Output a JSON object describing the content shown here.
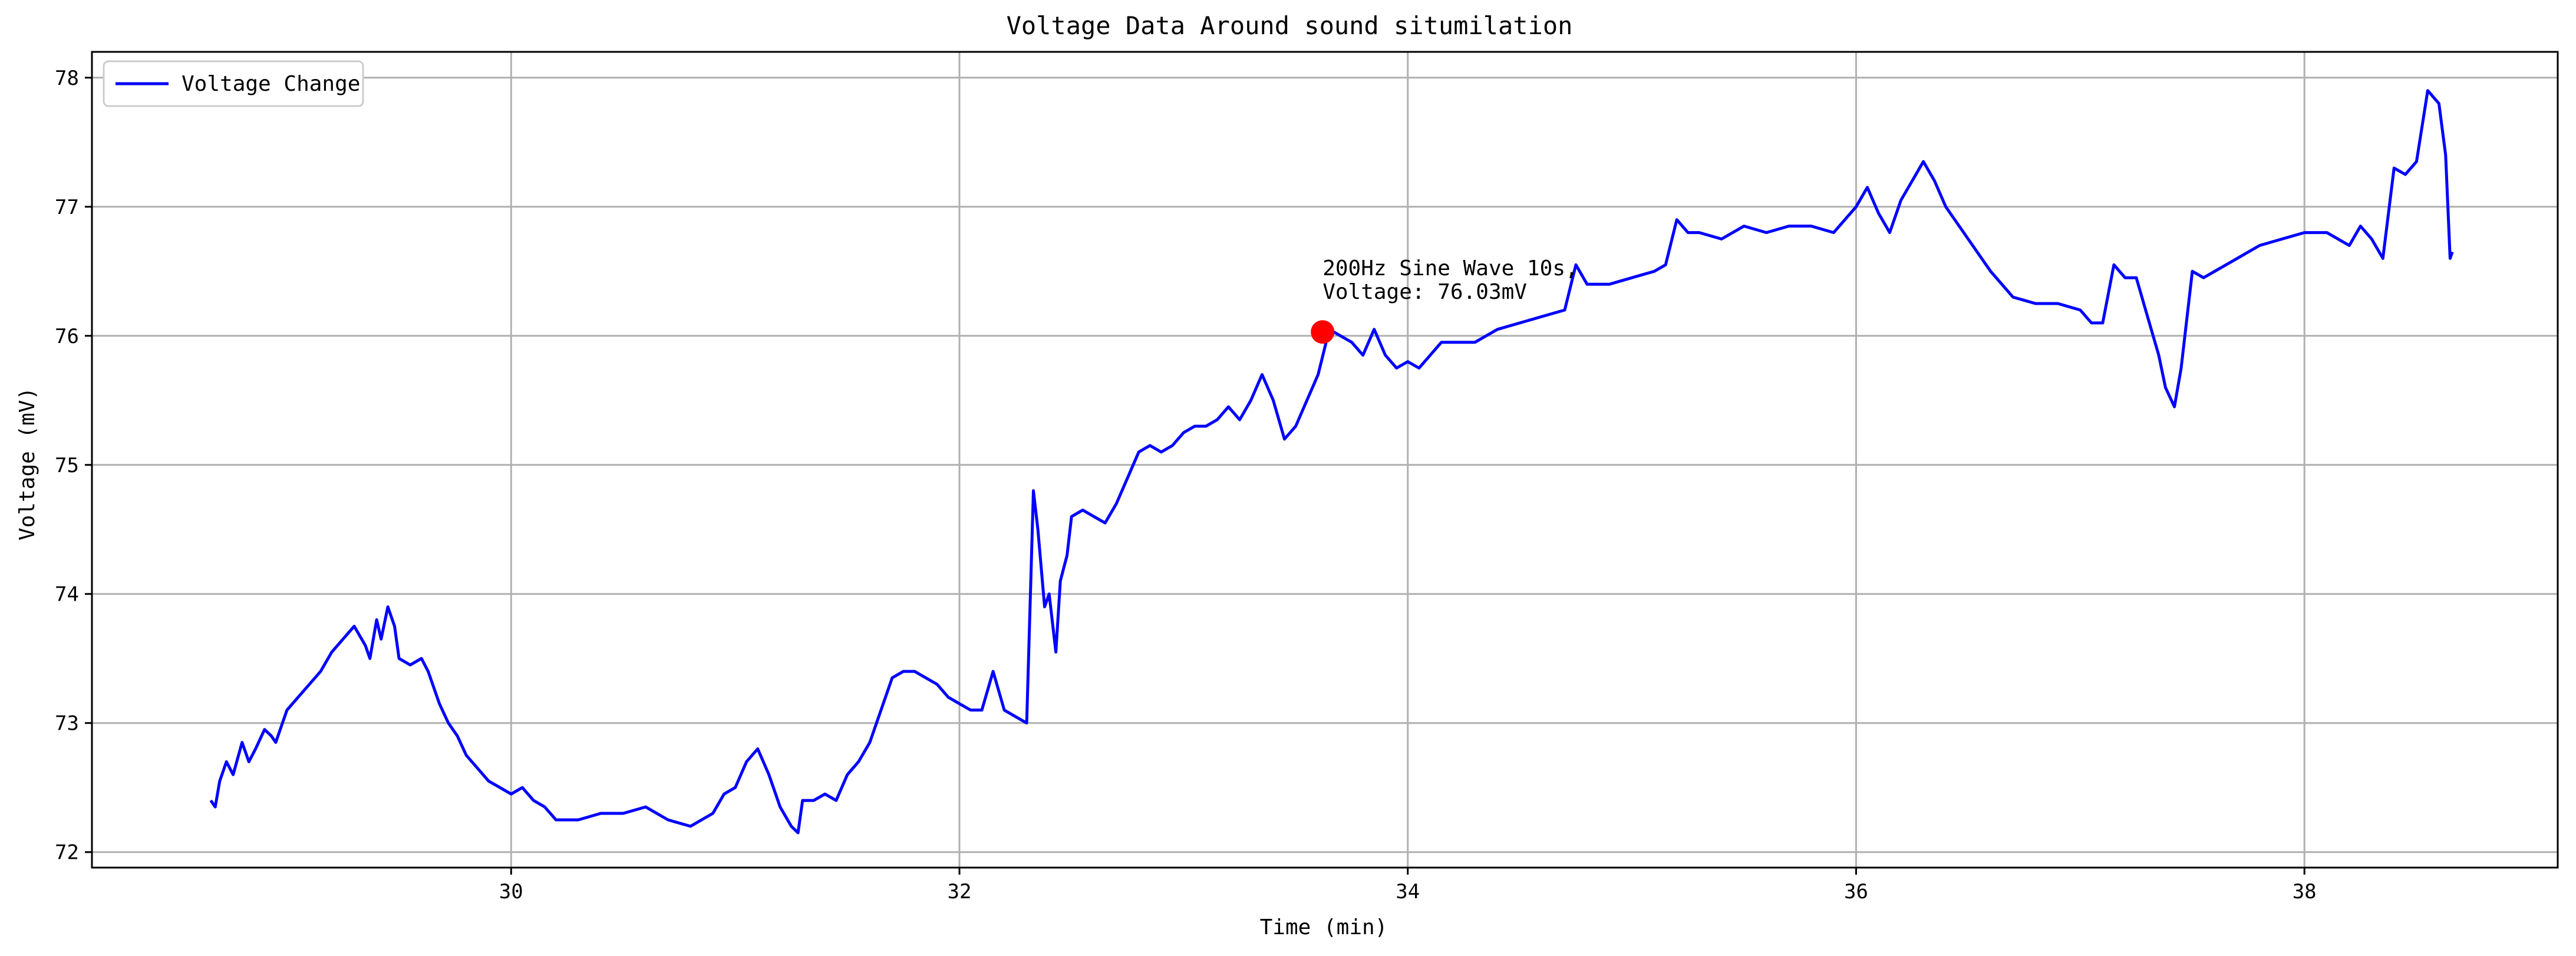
{
  "chart_data": {
    "type": "line",
    "title": "Voltage Data Around sound situmilation",
    "xlabel": "Time (min)",
    "ylabel": "Voltage (mV)",
    "xlim": [
      28.13,
      39.13
    ],
    "ylim": [
      71.88,
      78.2
    ],
    "xticks": [
      30,
      32,
      34,
      36,
      38
    ],
    "yticks": [
      72,
      73,
      74,
      75,
      76,
      77,
      78
    ],
    "grid": true,
    "legend_position": "upper-left",
    "series": [
      {
        "name": "Voltage Change",
        "color": "#0000ff",
        "x": [
          28.66,
          28.68,
          28.7,
          28.73,
          28.76,
          28.8,
          28.83,
          28.86,
          28.9,
          28.93,
          28.95,
          29.0,
          29.05,
          29.1,
          29.15,
          29.2,
          29.25,
          29.3,
          29.35,
          29.37,
          29.4,
          29.42,
          29.45,
          29.48,
          29.5,
          29.55,
          29.6,
          29.63,
          29.68,
          29.72,
          29.76,
          29.8,
          29.85,
          29.9,
          29.95,
          30.0,
          30.05,
          30.1,
          30.15,
          30.2,
          30.3,
          30.4,
          30.5,
          30.6,
          30.7,
          30.8,
          30.9,
          30.95,
          31.0,
          31.05,
          31.1,
          31.15,
          31.2,
          31.25,
          31.28,
          31.3,
          31.35,
          31.4,
          31.45,
          31.5,
          31.55,
          31.6,
          31.65,
          31.7,
          31.75,
          31.8,
          31.85,
          31.9,
          31.95,
          32.0,
          32.05,
          32.1,
          32.15,
          32.2,
          32.25,
          32.3,
          32.33,
          32.35,
          32.38,
          32.4,
          32.43,
          32.45,
          32.48,
          32.5,
          32.55,
          32.6,
          32.65,
          32.7,
          32.75,
          32.8,
          32.85,
          32.9,
          32.95,
          33.0,
          33.05,
          33.1,
          33.15,
          33.2,
          33.25,
          33.3,
          33.35,
          33.4,
          33.45,
          33.5,
          33.55,
          33.6,
          33.65,
          33.7,
          33.75,
          33.8,
          33.85,
          33.9,
          33.95,
          34.0,
          34.05,
          34.1,
          34.15,
          34.2,
          34.3,
          34.4,
          34.5,
          34.6,
          34.7,
          34.75,
          34.8,
          34.9,
          35.0,
          35.1,
          35.15,
          35.2,
          35.25,
          35.3,
          35.4,
          35.5,
          35.6,
          35.7,
          35.8,
          35.9,
          36.0,
          36.05,
          36.1,
          36.15,
          36.2,
          36.25,
          36.3,
          36.35,
          36.4,
          36.5,
          36.6,
          36.7,
          36.8,
          36.9,
          37.0,
          37.05,
          37.1,
          37.15,
          37.2,
          37.25,
          37.3,
          37.35,
          37.38,
          37.42,
          37.45,
          37.5,
          37.55,
          37.6,
          37.7,
          37.8,
          37.9,
          38.0,
          38.1,
          38.2,
          38.25,
          38.3,
          38.35,
          38.4,
          38.45,
          38.5,
          38.55,
          38.6,
          38.63,
          38.65,
          38.66
        ],
        "y": [
          72.4,
          72.35,
          72.55,
          72.7,
          72.6,
          72.85,
          72.7,
          72.8,
          72.95,
          72.9,
          72.85,
          73.1,
          73.2,
          73.3,
          73.4,
          73.55,
          73.65,
          73.75,
          73.6,
          73.5,
          73.8,
          73.65,
          73.9,
          73.75,
          73.5,
          73.45,
          73.5,
          73.4,
          73.15,
          73.0,
          72.9,
          72.75,
          72.65,
          72.55,
          72.5,
          72.45,
          72.5,
          72.4,
          72.35,
          72.25,
          72.25,
          72.3,
          72.3,
          72.35,
          72.25,
          72.2,
          72.3,
          72.45,
          72.5,
          72.7,
          72.8,
          72.6,
          72.35,
          72.2,
          72.15,
          72.4,
          72.4,
          72.45,
          72.4,
          72.6,
          72.7,
          72.85,
          73.1,
          73.35,
          73.4,
          73.4,
          73.35,
          73.3,
          73.2,
          73.15,
          73.1,
          73.1,
          73.4,
          73.1,
          73.05,
          73.0,
          74.8,
          74.5,
          73.9,
          74.0,
          73.55,
          74.1,
          74.3,
          74.6,
          74.65,
          74.6,
          74.55,
          74.7,
          74.9,
          75.1,
          75.15,
          75.1,
          75.15,
          75.25,
          75.3,
          75.3,
          75.35,
          75.45,
          75.35,
          75.5,
          75.7,
          75.5,
          75.2,
          75.3,
          75.5,
          75.7,
          76.05,
          76.0,
          75.95,
          75.85,
          76.05,
          75.85,
          75.75,
          75.8,
          75.75,
          75.85,
          75.95,
          75.95,
          75.95,
          76.05,
          76.1,
          76.15,
          76.2,
          76.55,
          76.4,
          76.4,
          76.45,
          76.5,
          76.55,
          76.9,
          76.8,
          76.8,
          76.75,
          76.85,
          76.8,
          76.85,
          76.85,
          76.8,
          77.0,
          77.15,
          76.95,
          76.8,
          77.05,
          77.2,
          77.35,
          77.2,
          77.0,
          76.75,
          76.5,
          76.3,
          76.25,
          76.25,
          76.2,
          76.1,
          76.1,
          76.55,
          76.45,
          76.45,
          76.15,
          75.85,
          75.6,
          75.45,
          75.75,
          76.5,
          76.45,
          76.5,
          76.6,
          76.7,
          76.75,
          76.8,
          76.8,
          76.7,
          76.85,
          76.75,
          76.6,
          77.3,
          77.25,
          77.35,
          77.9,
          77.8,
          77.4,
          76.6,
          76.65
        ]
      }
    ],
    "annotations": [
      {
        "x": 33.62,
        "y": 76.03,
        "marker_color": "#ff0000",
        "lines": [
          "200Hz Sine Wave 10s,",
          "Voltage: 76.03mV"
        ]
      }
    ]
  }
}
